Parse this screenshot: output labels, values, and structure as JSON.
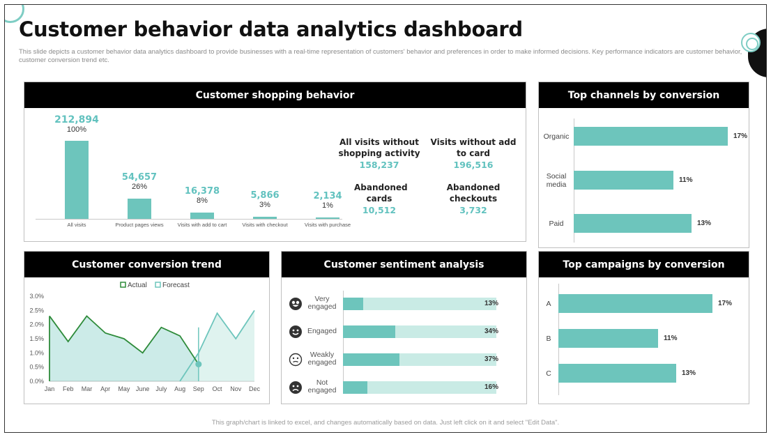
{
  "header": {
    "title": "Customer behavior data analytics dashboard",
    "subtitle": "This slide depicts a customer behavior data analytics dashboard to provide businesses with a real-time representation of customers' behavior and preferences in order to make informed decisions. Key performance indicators are customer behavior, customer conversion trend etc."
  },
  "footer": "This graph/chart is linked to excel, and changes automatically based on data. Just left click on it and select \"Edit Data\".",
  "colors": {
    "teal": "#6dc5bc",
    "teal_light": "#c9ebe5",
    "teal_text": "#62c2bf",
    "actual_line": "#2e8b3a",
    "panel_header": "#000000"
  },
  "shopping": {
    "title": "Customer shopping behavior",
    "kpis": [
      {
        "label": "All visits without shopping activity",
        "value": "158,237"
      },
      {
        "label": "Visits without add to card",
        "value": "196,516"
      },
      {
        "label": "Abandoned cards",
        "value": "10,512"
      },
      {
        "label": "Abandoned checkouts",
        "value": "3,732"
      }
    ]
  },
  "channels": {
    "title": "Top channels by conversion"
  },
  "campaigns": {
    "title": "Top campaigns by conversion"
  },
  "trend": {
    "title": "Customer conversion trend",
    "legend_actual": "Actual",
    "legend_forecast": "Forecast"
  },
  "sentiment": {
    "title": "Customer sentiment analysis"
  },
  "chart_data": [
    {
      "type": "bar",
      "title": "Customer shopping behavior",
      "categories": [
        "All visits",
        "Product pages views",
        "Visits with add to cart",
        "Visits with checkout",
        "Visits with purchase"
      ],
      "values": [
        212894,
        54657,
        16378,
        5866,
        2134
      ],
      "value_labels": [
        "212,894",
        "54,657",
        "16,378",
        "5,866",
        "2,134"
      ],
      "percent_labels": [
        "100%",
        "26%",
        "8%",
        "3%",
        "1%"
      ],
      "percent_values": [
        100,
        26,
        8,
        3,
        1
      ]
    },
    {
      "type": "bar",
      "orientation": "horizontal",
      "title": "Top channels by conversion",
      "categories": [
        "Organic",
        "Social media",
        "Paid"
      ],
      "values": [
        17,
        11,
        13
      ],
      "value_labels": [
        "17%",
        "11%",
        "13%"
      ]
    },
    {
      "type": "bar",
      "orientation": "horizontal",
      "title": "Top campaigns by conversion",
      "categories": [
        "A",
        "B",
        "C"
      ],
      "values": [
        17,
        11,
        13
      ],
      "value_labels": [
        "17%",
        "11%",
        "13%"
      ]
    },
    {
      "type": "area",
      "title": "Customer conversion trend",
      "categories": [
        "Jan",
        "Feb",
        "Mar",
        "Apr",
        "May",
        "June",
        "July",
        "Aug",
        "Sep",
        "Oct",
        "Nov",
        "Dec"
      ],
      "ylim": [
        0,
        3.0
      ],
      "yticks": [
        "0.0%",
        "0.5%",
        "1.0%",
        "1.5%",
        "2.0%",
        "2.5%",
        "3.0%"
      ],
      "series": [
        {
          "name": "Actual",
          "values": [
            2.3,
            1.4,
            2.3,
            1.7,
            1.5,
            1.0,
            1.9,
            1.6,
            0.6,
            null,
            null,
            null
          ]
        },
        {
          "name": "Forecast",
          "values": [
            null,
            null,
            null,
            null,
            null,
            null,
            null,
            0.0,
            1.0,
            2.4,
            1.5,
            2.5
          ]
        }
      ]
    },
    {
      "type": "bar",
      "orientation": "horizontal",
      "stacked_to": 100,
      "title": "Customer sentiment analysis",
      "categories": [
        "Very engaged",
        "Engaged",
        "Weakly engaged",
        "Not engaged"
      ],
      "icons": [
        "grin-face-icon",
        "smile-face-icon",
        "neutral-face-icon",
        "frown-face-icon"
      ],
      "values": [
        13,
        34,
        37,
        16
      ],
      "value_labels": [
        "13%",
        "34%",
        "37%",
        "16%"
      ]
    }
  ]
}
